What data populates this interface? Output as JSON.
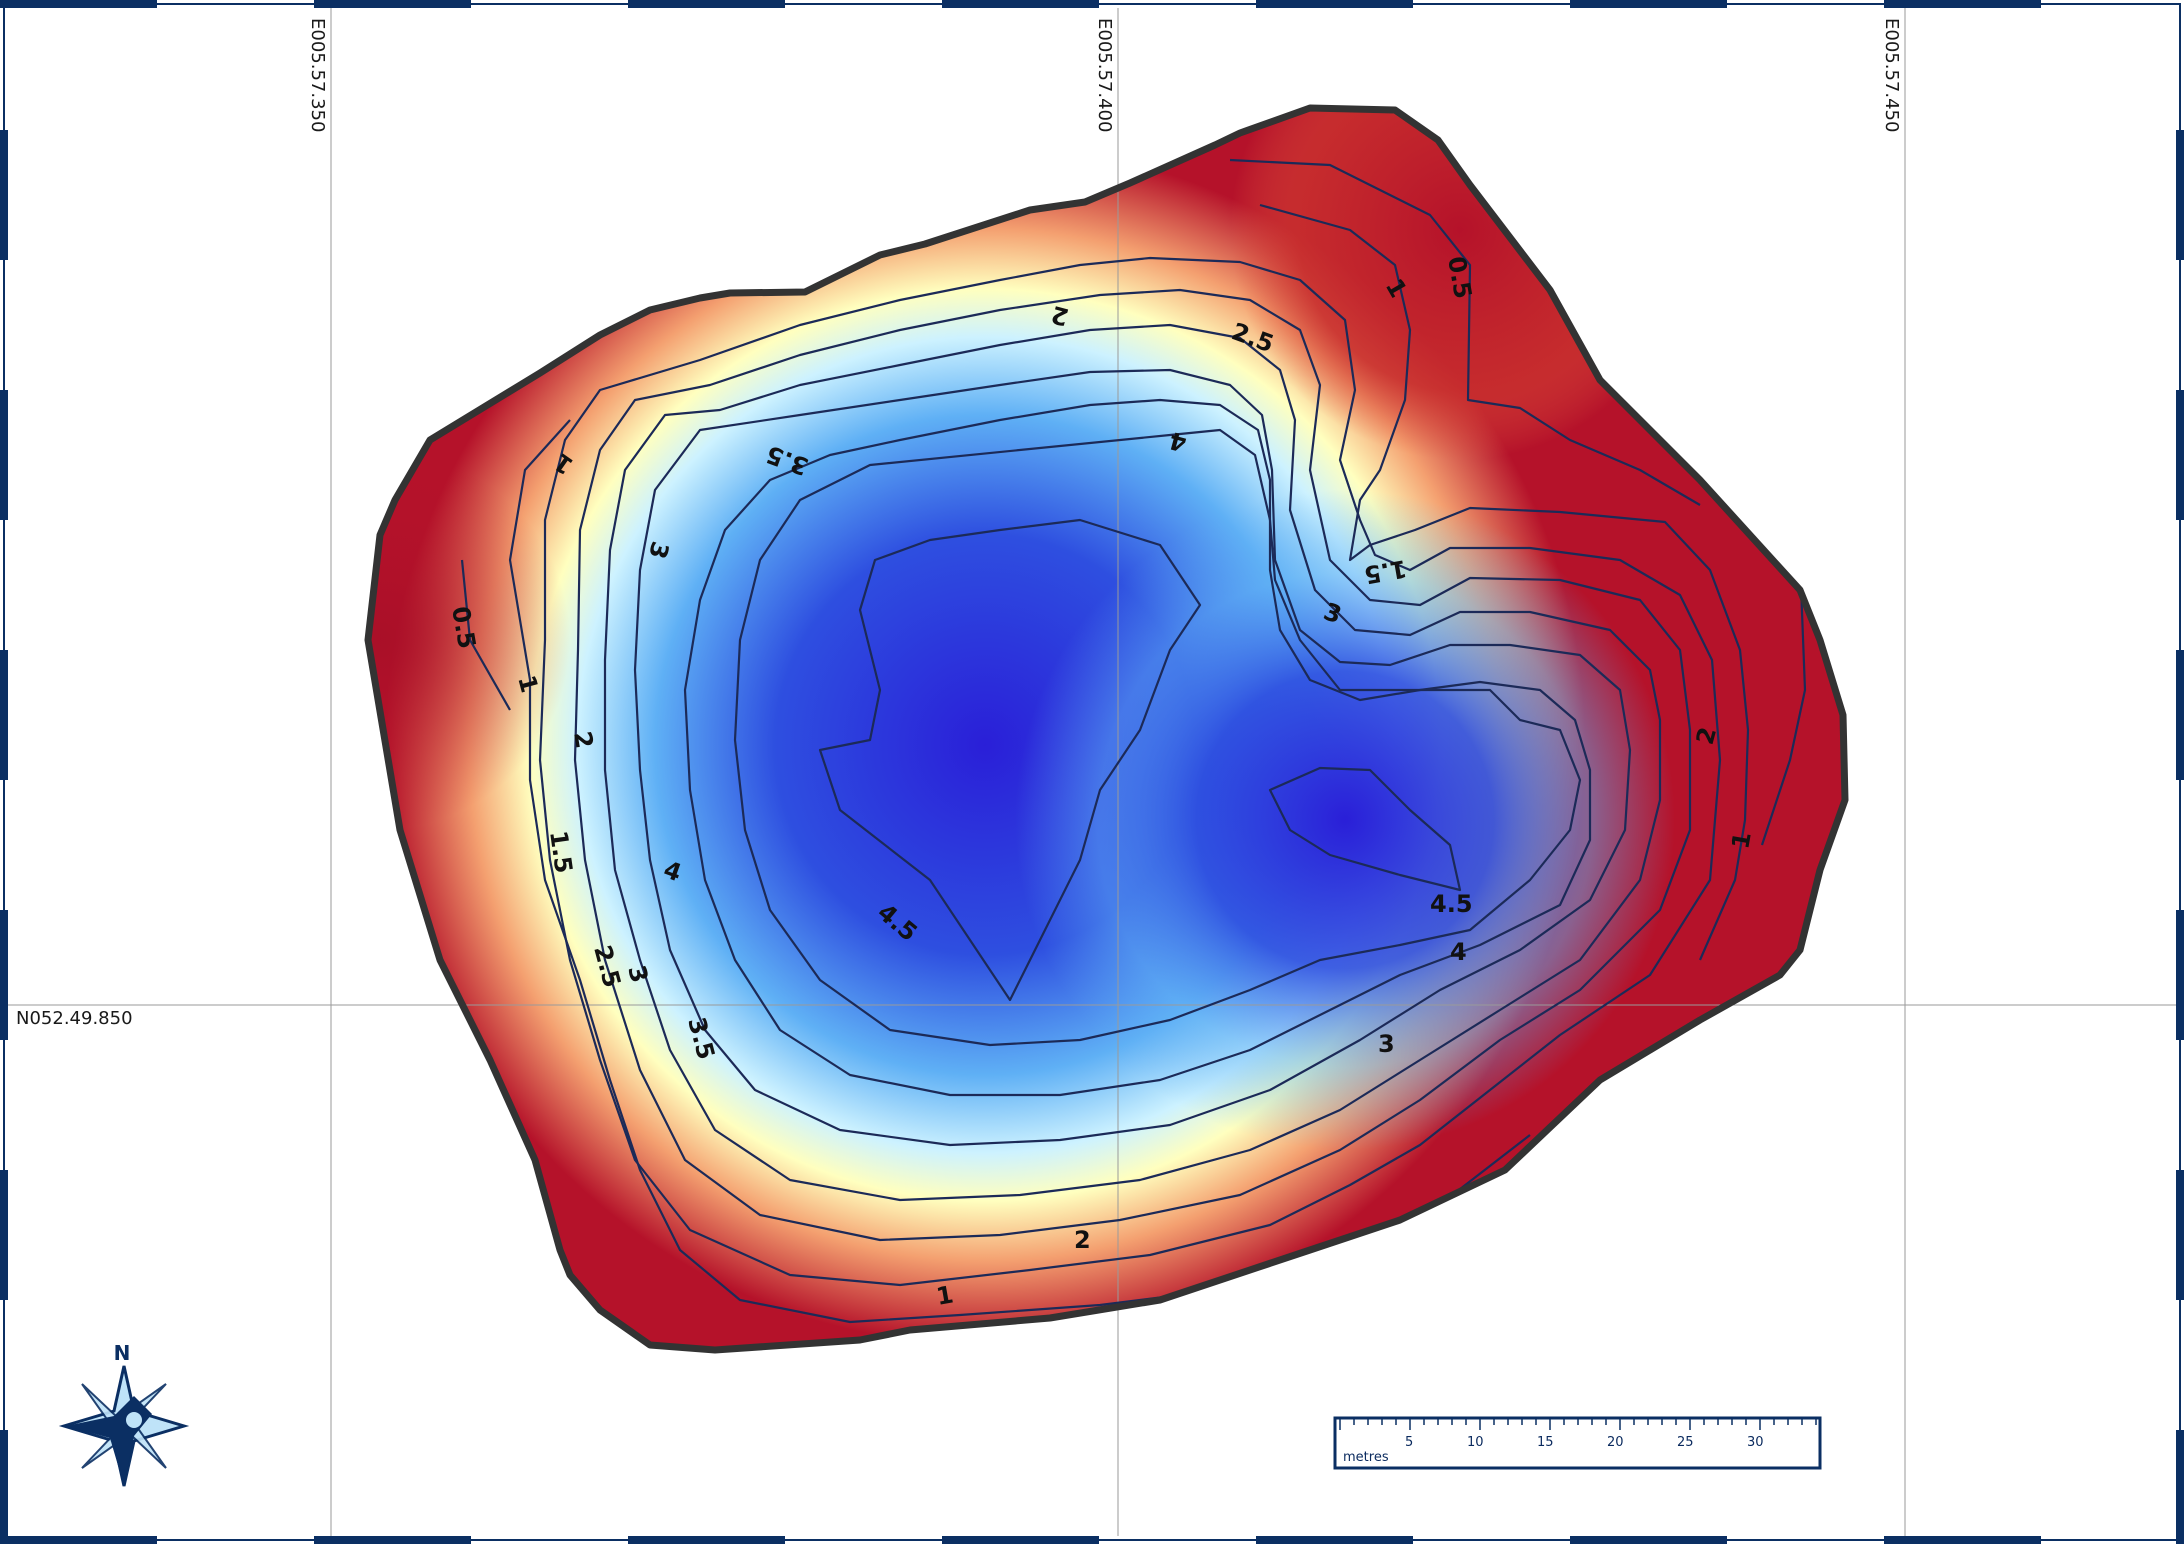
{
  "colors": {
    "frame": "#0b2f63",
    "shallow": "#b5122a",
    "mid": "#ffffbf",
    "deep": "#2a1fd8",
    "outline": "#333333",
    "contour": "#1c2a58"
  },
  "grid": {
    "lon_labels": [
      "E005.57.350",
      "E005.57.400",
      "E005.57.450"
    ],
    "lat_labels": [
      "N052.49.850"
    ]
  },
  "contour_labels": {
    "l05a": "0.5",
    "l05b": "0.5",
    "l1a": "1",
    "l1b": "1",
    "l1c": "1",
    "l1d": "1",
    "l1e": "1",
    "l15a": "1.5",
    "l15b": "1.5",
    "l2a": "2",
    "l2b": "2",
    "l2c": "2",
    "l2d": "2",
    "l25a": "2.5",
    "l25b": "2.5",
    "l3a": "3",
    "l3b": "3",
    "l3c": "3",
    "l3d": "3",
    "l35a": "3.5",
    "l35b": "3.5",
    "l4a": "4",
    "l4b": "4",
    "l4c": "4",
    "l45a": "4.5",
    "l45b": "4.5"
  },
  "compass": {
    "north_label": "N",
    "icon": "compass-rose-icon"
  },
  "scale_bar": {
    "unit": "metres",
    "ticks": [
      "5",
      "10",
      "15",
      "20",
      "25",
      "30"
    ]
  }
}
